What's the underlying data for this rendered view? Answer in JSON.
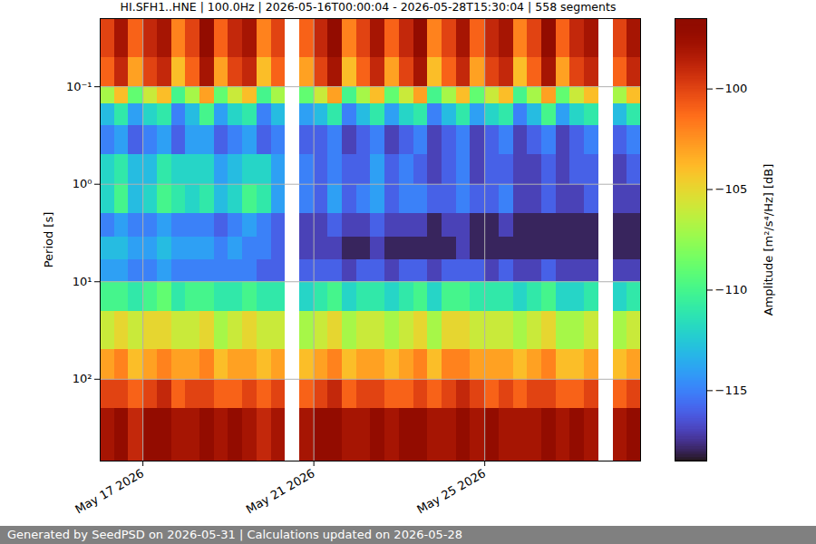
{
  "chart_data": {
    "type": "heatmap",
    "title": "HI.SFH1..HNE | 100.0Hz | 2026-05-16T00:00:04 - 2026-05-28T15:30:04 | 558 segments",
    "caption": "Generated by SeedPSD on 2026-05-31 | Calculations updated on 2026-05-28",
    "ylabel": "Period [s]",
    "log": "y",
    "grid": true,
    "xlim": [
      "2026-05-16T00:00:04Z",
      "2026-05-28T15:30:04Z"
    ],
    "xticks": [
      {
        "value": "2026-05-17T00:00Z",
        "label": "May 17 2026"
      },
      {
        "value": "2026-05-21T00:00Z",
        "label": "May 21 2026"
      },
      {
        "value": "2026-05-25T00:00Z",
        "label": "May 25 2026"
      }
    ],
    "ylim": [
      0.02,
      690
    ],
    "yticks": [
      {
        "value": 0.1,
        "label": "10⁻¹"
      },
      {
        "value": 1,
        "label": "10⁰"
      },
      {
        "value": 10,
        "label": "10¹"
      },
      {
        "value": 100,
        "label": "10²"
      }
    ],
    "x": [
      "2026-05-16T00:00Z",
      "2026-05-16T08:00Z",
      "2026-05-16T16:00Z",
      "2026-05-17T00:00Z",
      "2026-05-17T08:00Z",
      "2026-05-17T16:00Z",
      "2026-05-18T00:00Z",
      "2026-05-18T08:00Z",
      "2026-05-18T16:00Z",
      "2026-05-19T00:00Z",
      "2026-05-19T08:00Z",
      "2026-05-19T16:00Z",
      "2026-05-20T00:00Z",
      "2026-05-20T08:00Z",
      "2026-05-20T16:00Z",
      "2026-05-21T00:00Z",
      "2026-05-21T08:00Z",
      "2026-05-21T16:00Z",
      "2026-05-22T00:00Z",
      "2026-05-22T08:00Z",
      "2026-05-22T16:00Z",
      "2026-05-23T00:00Z",
      "2026-05-23T08:00Z",
      "2026-05-23T16:00Z",
      "2026-05-24T00:00Z",
      "2026-05-24T08:00Z",
      "2026-05-24T16:00Z",
      "2026-05-25T00:00Z",
      "2026-05-25T08:00Z",
      "2026-05-25T16:00Z",
      "2026-05-26T00:00Z",
      "2026-05-26T08:00Z",
      "2026-05-26T16:00Z",
      "2026-05-27T00:00Z",
      "2026-05-27T08:00Z",
      "2026-05-27T16:00Z",
      "2026-05-28T00:00Z",
      "2026-05-28T08:00Z",
      "2026-05-28T16:00Z"
    ],
    "y": [
      0.02,
      0.05,
      0.1,
      0.15,
      0.25,
      0.5,
      1,
      2,
      3.5,
      6,
      10,
      20,
      50,
      100,
      200,
      690
    ],
    "z": [
      [
        -100,
        -98,
        -101,
        -99,
        -98,
        -102,
        -100,
        -97,
        -101,
        -99,
        -98,
        -102,
        -100,
        null,
        -101,
        -99,
        -97,
        -102,
        -100,
        -98,
        -101,
        -99,
        -97,
        -102,
        -100,
        -98,
        -101,
        -99,
        -98,
        -102,
        -100,
        -97,
        -101,
        -99,
        -98,
        null,
        -100,
        -98
      ],
      [
        -101,
        -99,
        -103,
        -100,
        -99,
        -104,
        -101,
        -98,
        -103,
        -100,
        -99,
        -104,
        -101,
        null,
        -103,
        -100,
        -98,
        -104,
        -101,
        -99,
        -103,
        -100,
        -98,
        -104,
        -101,
        -99,
        -103,
        -100,
        -99,
        -104,
        -101,
        -98,
        -103,
        -100,
        -99,
        null,
        -101,
        -99
      ],
      [
        -107,
        -104,
        -109,
        -106,
        -104,
        -110,
        -107,
        -103,
        -109,
        -106,
        -104,
        -110,
        -107,
        null,
        -109,
        -106,
        -103,
        -110,
        -107,
        -104,
        -109,
        -106,
        -103,
        -110,
        -107,
        -104,
        -109,
        -106,
        -104,
        -110,
        -107,
        -103,
        -109,
        -106,
        -104,
        null,
        -107,
        -104
      ],
      [
        -113,
        -111,
        -114,
        -112,
        -111,
        -115,
        -113,
        -110,
        -114,
        -112,
        -111,
        -115,
        -113,
        null,
        -114,
        -113,
        -111,
        -115,
        -113,
        -111,
        -114,
        -112,
        -111,
        -115,
        -113,
        -111,
        -114,
        -112,
        -111,
        -115,
        -113,
        -110,
        -114,
        -112,
        -111,
        null,
        -113,
        -111
      ],
      [
        -115,
        -114,
        -116,
        -115,
        -114,
        -116,
        -114,
        -114,
        -116,
        -115,
        -114,
        -116,
        -115,
        null,
        -116,
        -116,
        -115,
        -117,
        -116,
        -115,
        -117,
        -116,
        -115,
        -117,
        -116,
        -115,
        -117,
        -116,
        -115,
        -117,
        -116,
        -115,
        -117,
        -116,
        -115,
        null,
        -116,
        -115
      ],
      [
        -112,
        -111,
        -113,
        -113,
        -111,
        -112,
        -112,
        -112,
        -114,
        -113,
        -112,
        -112,
        -114,
        null,
        -115,
        -116,
        -115,
        -116,
        -116,
        -114,
        -116,
        -115,
        -116,
        -117,
        -116,
        -115,
        -117,
        -116,
        -116,
        -117,
        -117,
        -116,
        -117,
        -116,
        -116,
        null,
        -117,
        -116
      ],
      [
        -112,
        -110,
        -113,
        -112,
        -110,
        -111,
        -112,
        -111,
        -113,
        -112,
        -110,
        -111,
        -114,
        null,
        -115,
        -116,
        -114,
        -116,
        -115,
        -114,
        -116,
        -115,
        -115,
        -116,
        -116,
        -115,
        -116,
        -116,
        -115,
        -117,
        -117,
        -116,
        -117,
        -117,
        -116,
        null,
        -117,
        -117
      ],
      [
        -115,
        -114,
        -115,
        -115,
        -114,
        -115,
        -115,
        -115,
        -116,
        -115,
        -114,
        -115,
        -116,
        null,
        -117,
        -117,
        -116,
        -117,
        -117,
        -116,
        -117,
        -117,
        -117,
        -118,
        -117,
        -117,
        -118,
        -118,
        -117,
        -118,
        -118,
        -118,
        -118,
        -118,
        -118,
        null,
        -118,
        -118
      ],
      [
        -113,
        -113,
        -114,
        -114,
        -113,
        -114,
        -114,
        -114,
        -115,
        -114,
        -115,
        -115,
        -116,
        null,
        -117,
        -117,
        -117,
        -118,
        -118,
        -117,
        -118,
        -118,
        -118,
        -118,
        -118,
        -117,
        -118,
        -118,
        -118,
        -118,
        -118,
        -118,
        -118,
        -118,
        -118,
        null,
        -118,
        -118
      ],
      [
        -114,
        -114,
        -115,
        -115,
        -114,
        -115,
        -115,
        -115,
        -115,
        -115,
        -115,
        -116,
        -116,
        null,
        -116,
        -116,
        -116,
        -117,
        -116,
        -116,
        -117,
        -116,
        -116,
        -117,
        -116,
        -116,
        -116,
        -117,
        -116,
        -117,
        -117,
        -116,
        -117,
        -117,
        -117,
        null,
        -117,
        -117
      ],
      [
        -110,
        -110,
        -111,
        -110,
        -109,
        -111,
        -110,
        -110,
        -111,
        -111,
        -110,
        -111,
        -111,
        null,
        -112,
        -111,
        -110,
        -112,
        -111,
        -111,
        -112,
        -111,
        -110,
        -112,
        -110,
        -110,
        -111,
        -111,
        -111,
        -112,
        -111,
        -110,
        -112,
        -112,
        -111,
        null,
        -112,
        -111
      ],
      [
        -106,
        -105,
        -106,
        -105,
        -105,
        -106,
        -106,
        -105,
        -107,
        -106,
        -105,
        -106,
        -106,
        null,
        -107,
        -106,
        -105,
        -107,
        -106,
        -106,
        -107,
        -106,
        -105,
        -107,
        -105,
        -105,
        -106,
        -106,
        -106,
        -107,
        -106,
        -105,
        -107,
        -107,
        -106,
        null,
        -107,
        -106
      ],
      [
        -103,
        -102,
        -104,
        -103,
        -102,
        -103,
        -103,
        -102,
        -104,
        -103,
        -103,
        -104,
        -103,
        null,
        -104,
        -103,
        -102,
        -104,
        -103,
        -103,
        -104,
        -103,
        -102,
        -104,
        -102,
        -102,
        -103,
        -103,
        -103,
        -104,
        -103,
        -102,
        -104,
        -104,
        -103,
        null,
        -104,
        -103
      ],
      [
        -100,
        -100,
        -101,
        -100,
        -99,
        -101,
        -100,
        -100,
        -101,
        -101,
        -100,
        -101,
        -100,
        null,
        -101,
        -100,
        -99,
        -101,
        -100,
        -100,
        -101,
        -101,
        -100,
        -101,
        -100,
        -99,
        -100,
        -101,
        -100,
        -101,
        -100,
        -100,
        -101,
        -101,
        -100,
        null,
        -101,
        -100
      ],
      [
        -98,
        -97,
        -99,
        -97,
        -97,
        -98,
        -98,
        -97,
        -98,
        -97,
        -98,
        -99,
        -98,
        null,
        -98,
        -97,
        -97,
        -98,
        -98,
        -97,
        -98,
        -97,
        -97,
        -98,
        -98,
        -97,
        -98,
        -97,
        -98,
        -98,
        -98,
        -97,
        -98,
        -97,
        -98,
        null,
        -98,
        -97
      ]
    ],
    "colorbar": {
      "label": "Amplitude [m²/s⁴/Hz] [dB]",
      "range": [
        -118.5,
        -96.5
      ],
      "ticks": [
        -100,
        -105,
        -110,
        -115
      ]
    }
  }
}
